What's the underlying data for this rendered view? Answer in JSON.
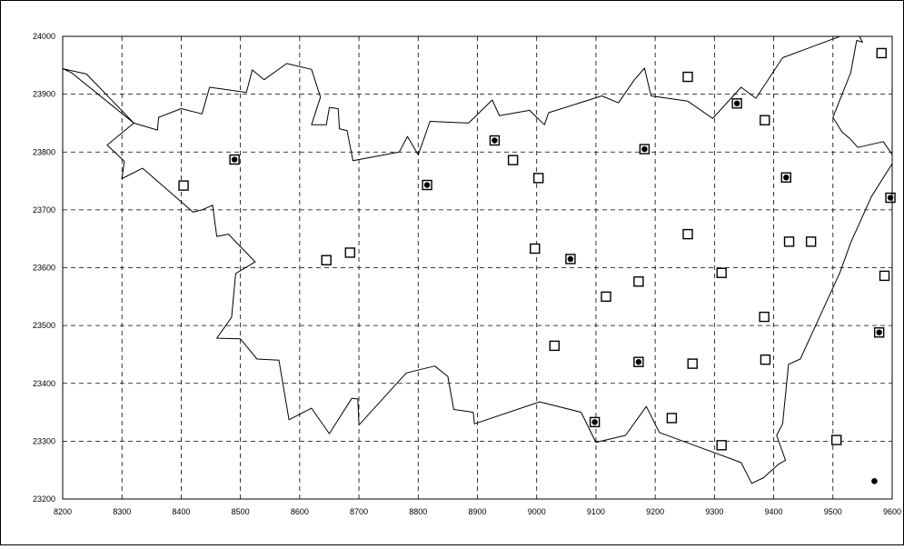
{
  "chart_data": {
    "type": "scatter",
    "title": "",
    "xlabel": "",
    "ylabel": "",
    "xlim": [
      8200,
      9600
    ],
    "ylim": [
      23200,
      24000
    ],
    "x_ticks": [
      8200,
      8300,
      8400,
      8500,
      8600,
      8700,
      8800,
      8900,
      9000,
      9100,
      9200,
      9300,
      9400,
      9500,
      9600
    ],
    "y_ticks": [
      23200,
      23300,
      23400,
      23500,
      23600,
      23700,
      23800,
      23900,
      24000
    ],
    "grid": "dashed",
    "legend": "none",
    "colors": {
      "marker": "#000000",
      "boundary": "#000000",
      "grid": "#000000"
    },
    "series": [
      {
        "marker": "open-square",
        "points": [
          [
            8404,
            23742
          ],
          [
            8645,
            23613
          ],
          [
            8685,
            23626
          ],
          [
            8960,
            23786
          ],
          [
            9003,
            23755
          ],
          [
            8997,
            23633
          ],
          [
            9030,
            23465
          ],
          [
            9117,
            23550
          ],
          [
            9172,
            23576
          ],
          [
            9228,
            23340
          ],
          [
            9255,
            23930
          ],
          [
            9255,
            23658
          ],
          [
            9263,
            23434
          ],
          [
            9312,
            23591
          ],
          [
            9312,
            23293
          ],
          [
            9385,
            23855
          ],
          [
            9384,
            23515
          ],
          [
            9386,
            23441
          ],
          [
            9426,
            23645
          ],
          [
            9463,
            23645
          ],
          [
            9506,
            23302
          ],
          [
            9582,
            23971
          ],
          [
            9587,
            23586
          ]
        ]
      },
      {
        "marker": "square-with-dot",
        "points": [
          [
            8490,
            23787
          ],
          [
            8815,
            23743
          ],
          [
            8929,
            23820
          ],
          [
            9057,
            23615
          ],
          [
            9182,
            23805
          ],
          [
            9338,
            23884
          ],
          [
            9421,
            23756
          ],
          [
            9098,
            23333
          ],
          [
            9172,
            23437
          ],
          [
            9578,
            23488
          ],
          [
            9597,
            23721
          ]
        ]
      },
      {
        "marker": "dot",
        "points": [
          [
            9570,
            23231
          ]
        ]
      }
    ],
    "boundary": [
      [
        8200,
        23944
      ],
      [
        8215,
        23937
      ],
      [
        8320,
        23850
      ],
      [
        8360,
        23838
      ],
      [
        8362,
        23860
      ],
      [
        8400,
        23875
      ],
      [
        8435,
        23866
      ],
      [
        8448,
        23912
      ],
      [
        8510,
        23903
      ],
      [
        8520,
        23942
      ],
      [
        8540,
        23925
      ],
      [
        8578,
        23953
      ],
      [
        8620,
        23943
      ],
      [
        8635,
        23895
      ],
      [
        8620,
        23847
      ],
      [
        8645,
        23847
      ],
      [
        8650,
        23877
      ],
      [
        8665,
        23875
      ],
      [
        8667,
        23840
      ],
      [
        8680,
        23837
      ],
      [
        8690,
        23785
      ],
      [
        8768,
        23800
      ],
      [
        8782,
        23827
      ],
      [
        8800,
        23795
      ],
      [
        8820,
        23853
      ],
      [
        8885,
        23850
      ],
      [
        8925,
        23890
      ],
      [
        8937,
        23863
      ],
      [
        8988,
        23872
      ],
      [
        9013,
        23847
      ],
      [
        9020,
        23868
      ],
      [
        9110,
        23897
      ],
      [
        9138,
        23885
      ],
      [
        9165,
        23925
      ],
      [
        9182,
        23945
      ],
      [
        9193,
        23897
      ],
      [
        9255,
        23888
      ],
      [
        9297,
        23858
      ],
      [
        9345,
        23912
      ],
      [
        9370,
        23893
      ],
      [
        9415,
        23963
      ],
      [
        9520,
        24003
      ],
      [
        9542,
        24005
      ],
      [
        9550,
        23990
      ],
      [
        9540,
        23993
      ],
      [
        9530,
        23937
      ],
      [
        9500,
        23860
      ],
      [
        9515,
        23835
      ],
      [
        9530,
        23822
      ],
      [
        9542,
        23808
      ],
      [
        9585,
        23818
      ],
      [
        9605,
        23788
      ],
      [
        9565,
        23723
      ],
      [
        9530,
        23643
      ],
      [
        9512,
        23592
      ],
      [
        9445,
        23442
      ],
      [
        9425,
        23433
      ],
      [
        9415,
        23330
      ],
      [
        9405,
        23310
      ],
      [
        9420,
        23267
      ],
      [
        9408,
        23260
      ],
      [
        9383,
        23237
      ],
      [
        9363,
        23227
      ],
      [
        9345,
        23263
      ],
      [
        9207,
        23315
      ],
      [
        9185,
        23360
      ],
      [
        9150,
        23310
      ],
      [
        9100,
        23298
      ],
      [
        9075,
        23350
      ],
      [
        9005,
        23368
      ],
      [
        8895,
        23330
      ],
      [
        8893,
        23350
      ],
      [
        8860,
        23355
      ],
      [
        8850,
        23412
      ],
      [
        8828,
        23430
      ],
      [
        8780,
        23418
      ],
      [
        8700,
        23328
      ],
      [
        8698,
        23373
      ],
      [
        8688,
        23374
      ],
      [
        8650,
        23313
      ],
      [
        8620,
        23357
      ],
      [
        8582,
        23337
      ],
      [
        8565,
        23440
      ],
      [
        8528,
        23442
      ],
      [
        8500,
        23477
      ],
      [
        8460,
        23478
      ],
      [
        8485,
        23514
      ],
      [
        8492,
        23590
      ],
      [
        8525,
        23610
      ],
      [
        8490,
        23647
      ],
      [
        8480,
        23658
      ],
      [
        8460,
        23654
      ],
      [
        8453,
        23708
      ],
      [
        8435,
        23700
      ],
      [
        8420,
        23696
      ],
      [
        8335,
        23772
      ],
      [
        8300,
        23754
      ],
      [
        8304,
        23784
      ],
      [
        8275,
        23812
      ],
      [
        8320,
        23850
      ],
      [
        8240,
        23935
      ],
      [
        8200,
        23944
      ]
    ]
  }
}
